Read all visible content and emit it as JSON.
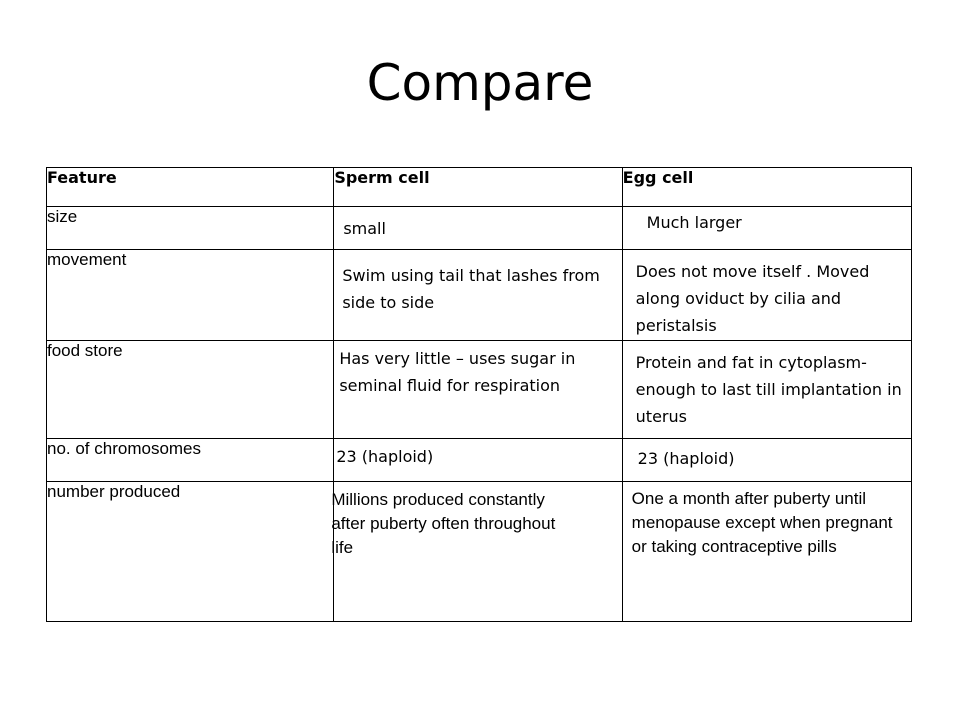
{
  "title": "Compare",
  "table": {
    "headers": [
      "Feature",
      "Sperm cell",
      "Egg cell"
    ],
    "rows": [
      {
        "feature": "size",
        "sperm": "small",
        "egg": "Much larger"
      },
      {
        "feature": "movement",
        "sperm": "Swim using tail that lashes from side to side",
        "egg": "Does not move itself . Moved along oviduct by cilia and peristalsis"
      },
      {
        "feature": "food store",
        "sperm": "Has very little – uses sugar in seminal fluid  for respiration",
        "egg": "Protein and fat in cytoplasm- enough to last till implantation in uterus"
      },
      {
        "feature": "no. of chromosomes",
        "sperm": "23 (haploid)",
        "egg": "23 (haploid)"
      },
      {
        "feature": "number produced",
        "sperm": "Millions produced constantly after puberty often throughout life",
        "egg": "One a month after puberty until menopause except when pregnant or taking contraceptive pills"
      }
    ]
  }
}
